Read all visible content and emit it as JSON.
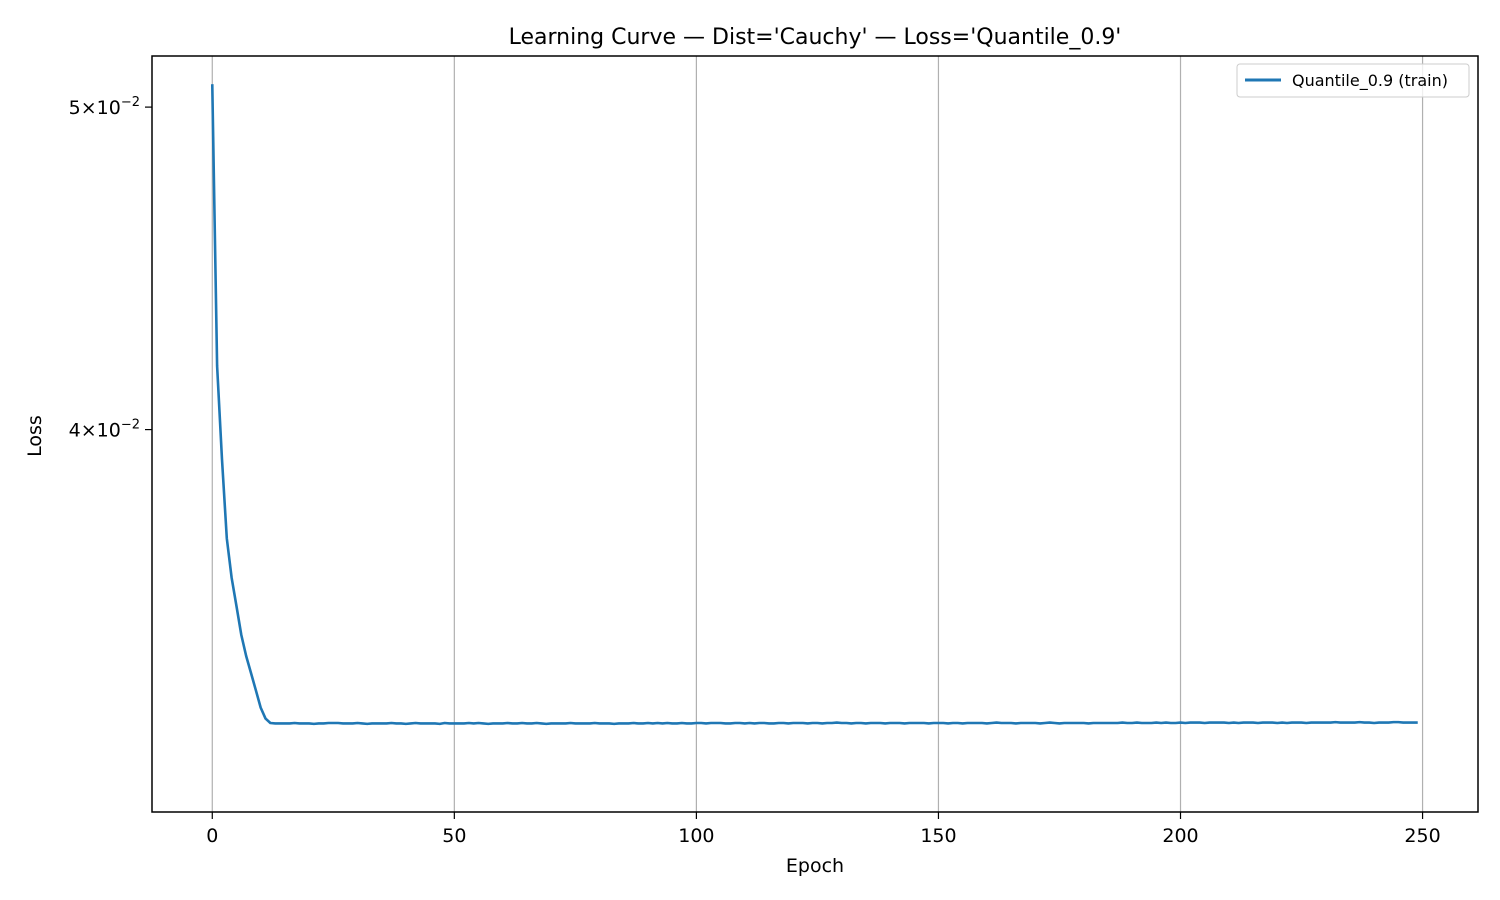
{
  "chart_data": {
    "type": "line",
    "title": "Learning Curve — Dist='Cauchy' — Loss='Quantile_0.9'",
    "xlabel": "Epoch",
    "ylabel": "Loss",
    "xlim": [
      -12.45,
      261.45
    ],
    "ylim": [
      0.0307,
      0.0518
    ],
    "y_scale": "log",
    "grid": "x-axis only",
    "legend_position": "top-right",
    "x_ticks": [
      0,
      50,
      100,
      150,
      200,
      250
    ],
    "y_ticks": [
      {
        "value": 0.05,
        "mantissa": "5",
        "exponent": "−2"
      },
      {
        "value": 0.04,
        "mantissa": "4",
        "exponent": "−2"
      }
    ],
    "tick_label_times": "×10",
    "colors": {
      "series": "#1f77b4",
      "grid": "#b0b0b0",
      "axes": "#000000"
    },
    "series": [
      {
        "name": "Quantile_0.9 (train)",
        "color": "#1f77b4",
        "x_start": 0,
        "x_step": 1,
        "values": [
          0.0508,
          0.0418,
          0.0392,
          0.0371,
          0.0361,
          0.0354,
          0.0347,
          0.0342,
          0.0338,
          0.0334,
          0.033,
          0.03275,
          0.03265,
          0.03264,
          0.03264,
          0.03264,
          0.03264,
          0.03265,
          0.03264,
          0.03264,
          0.03264,
          0.03263,
          0.03264,
          0.03264,
          0.03265,
          0.03265,
          0.03265,
          0.03264,
          0.03264,
          0.03264,
          0.03265,
          0.03264,
          0.03263,
          0.03264,
          0.03264,
          0.03264,
          0.03264,
          0.03265,
          0.03264,
          0.03264,
          0.03263,
          0.03264,
          0.03265,
          0.03264,
          0.03264,
          0.03264,
          0.03264,
          0.03263,
          0.03265,
          0.03264,
          0.03264,
          0.03264,
          0.03264,
          0.03265,
          0.03264,
          0.03265,
          0.03264,
          0.03263,
          0.03264,
          0.03264,
          0.03264,
          0.03265,
          0.03264,
          0.03264,
          0.03265,
          0.03264,
          0.03264,
          0.03265,
          0.03264,
          0.03263,
          0.03264,
          0.03264,
          0.03264,
          0.03264,
          0.03265,
          0.03264,
          0.03264,
          0.03264,
          0.03264,
          0.03265,
          0.03264,
          0.03264,
          0.03264,
          0.03263,
          0.03264,
          0.03264,
          0.03264,
          0.03265,
          0.03264,
          0.03264,
          0.03265,
          0.03264,
          0.03265,
          0.03264,
          0.03265,
          0.03264,
          0.03264,
          0.03265,
          0.03264,
          0.03264,
          0.03265,
          0.03265,
          0.03264,
          0.03265,
          0.03265,
          0.03265,
          0.03264,
          0.03264,
          0.03265,
          0.03265,
          0.03264,
          0.03265,
          0.03264,
          0.03265,
          0.03265,
          0.03264,
          0.03264,
          0.03265,
          0.03265,
          0.03264,
          0.03265,
          0.03265,
          0.03265,
          0.03264,
          0.03265,
          0.03265,
          0.03264,
          0.03265,
          0.03265,
          0.03266,
          0.03265,
          0.03265,
          0.03264,
          0.03265,
          0.03265,
          0.03264,
          0.03265,
          0.03265,
          0.03265,
          0.03264,
          0.03265,
          0.03265,
          0.03265,
          0.03264,
          0.03265,
          0.03265,
          0.03265,
          0.03265,
          0.03264,
          0.03265,
          0.03265,
          0.03265,
          0.03264,
          0.03265,
          0.03265,
          0.03264,
          0.03265,
          0.03265,
          0.03265,
          0.03265,
          0.03264,
          0.03265,
          0.03266,
          0.03265,
          0.03265,
          0.03265,
          0.03264,
          0.03265,
          0.03265,
          0.03265,
          0.03265,
          0.03264,
          0.03265,
          0.03266,
          0.03265,
          0.03264,
          0.03265,
          0.03265,
          0.03265,
          0.03265,
          0.03265,
          0.03264,
          0.03265,
          0.03265,
          0.03265,
          0.03265,
          0.03265,
          0.03265,
          0.03266,
          0.03265,
          0.03265,
          0.03266,
          0.03265,
          0.03265,
          0.03265,
          0.03266,
          0.03265,
          0.03266,
          0.03265,
          0.03265,
          0.03266,
          0.03265,
          0.03266,
          0.03266,
          0.03266,
          0.03265,
          0.03266,
          0.03266,
          0.03266,
          0.03266,
          0.03265,
          0.03266,
          0.03265,
          0.03266,
          0.03266,
          0.03266,
          0.03265,
          0.03266,
          0.03266,
          0.03266,
          0.03265,
          0.03266,
          0.03265,
          0.03266,
          0.03266,
          0.03266,
          0.03265,
          0.03266,
          0.03266,
          0.03266,
          0.03266,
          0.03266,
          0.03267,
          0.03266,
          0.03266,
          0.03266,
          0.03266,
          0.03267,
          0.03266,
          0.03266,
          0.03265,
          0.03266,
          0.03266,
          0.03266,
          0.03267,
          0.03267,
          0.03266,
          0.03266,
          0.03266,
          0.03266
        ]
      }
    ]
  }
}
